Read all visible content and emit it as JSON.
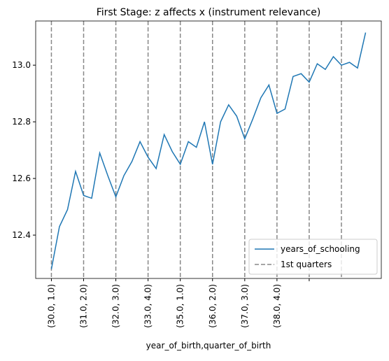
{
  "chart_data": {
    "type": "line",
    "title": "First Stage: z affects x (instrument relevance)",
    "x_label": "year_of_birth,quarter_of_birth",
    "x": [
      0,
      1,
      2,
      3,
      4,
      5,
      6,
      7,
      8,
      9,
      10,
      11,
      12,
      13,
      14,
      15,
      16,
      17,
      18,
      19,
      20,
      21,
      22,
      23,
      24,
      25,
      26,
      27,
      28,
      29,
      30,
      31,
      32,
      33,
      34,
      35,
      36,
      37,
      38,
      39
    ],
    "series": [
      {
        "name": "years_of_schooling",
        "color": "#1f77b4",
        "values": [
          12.28,
          12.43,
          12.49,
          12.625,
          12.54,
          12.53,
          12.69,
          12.61,
          12.535,
          12.61,
          12.66,
          12.73,
          12.675,
          12.635,
          12.755,
          12.695,
          12.65,
          12.73,
          12.71,
          12.8,
          12.65,
          12.8,
          12.86,
          12.82,
          12.74,
          12.81,
          12.885,
          12.93,
          12.83,
          12.845,
          12.96,
          12.97,
          12.94,
          13.005,
          12.985,
          13.03,
          13.0,
          13.01,
          12.99,
          13.115
        ]
      }
    ],
    "vlines": {
      "name": "1st quarters",
      "color": "#888888",
      "x": [
        0,
        4,
        8,
        12,
        16,
        20,
        24,
        28,
        32,
        36
      ]
    },
    "xlim": [
      -1.95,
      40.95
    ],
    "ylim": [
      12.247,
      13.156
    ],
    "xticks": [
      {
        "value": 0,
        "label": "(30.0, 1.0)"
      },
      {
        "value": 4,
        "label": "(31.0, 2.0)"
      },
      {
        "value": 8,
        "label": "(32.0, 3.0)"
      },
      {
        "value": 12,
        "label": "(33.0, 4.0)"
      },
      {
        "value": 16,
        "label": "(35.0, 1.0)"
      },
      {
        "value": 20,
        "label": "(36.0, 2.0)"
      },
      {
        "value": 24,
        "label": "(37.0, 3.0)"
      },
      {
        "value": 28,
        "label": "(38.0, 4.0)"
      },
      {
        "value": 32,
        "label": null
      }
    ],
    "yticks": [
      12.4,
      12.6,
      12.8,
      {
        "value": 13,
        "label": "13.0"
      }
    ],
    "legend": "lower right"
  }
}
